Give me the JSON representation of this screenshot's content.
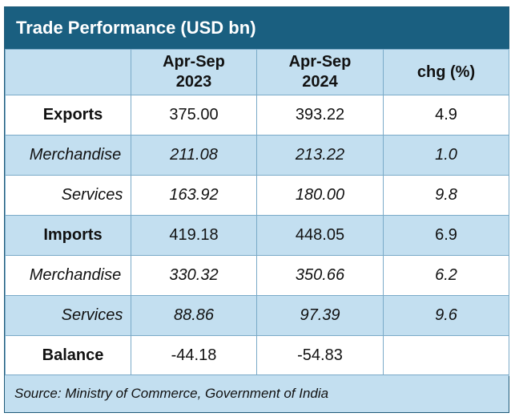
{
  "title": "Trade Performance (USD bn)",
  "headers": {
    "col1_line1": "Apr-Sep",
    "col1_line2": "2023",
    "col2_line1": "Apr-Sep",
    "col2_line2": "2024",
    "col3": "chg (%)"
  },
  "rows": [
    {
      "label": "Exports",
      "v2023": "375.00",
      "v2024": "393.22",
      "chg": "4.9"
    },
    {
      "label": "Merchandise",
      "v2023": "211.08",
      "v2024": "213.22",
      "chg": "1.0"
    },
    {
      "label": "Services",
      "v2023": "163.92",
      "v2024": "180.00",
      "chg": "9.8"
    },
    {
      "label": "Imports",
      "v2023": "419.18",
      "v2024": "448.05",
      "chg": "6.9"
    },
    {
      "label": "Merchandise",
      "v2023": "330.32",
      "v2024": "350.66",
      "chg": "6.2"
    },
    {
      "label": "Services",
      "v2023": "88.86",
      "v2024": "97.39",
      "chg": "9.6"
    },
    {
      "label": "Balance",
      "v2023": "-44.18",
      "v2024": "-54.83",
      "chg": ""
    }
  ],
  "source": "Source: Ministry of Commerce, Government of India",
  "colors": {
    "title_bg": "#1a5f80",
    "shade": "#c3dff0",
    "border": "#7aaac8"
  }
}
